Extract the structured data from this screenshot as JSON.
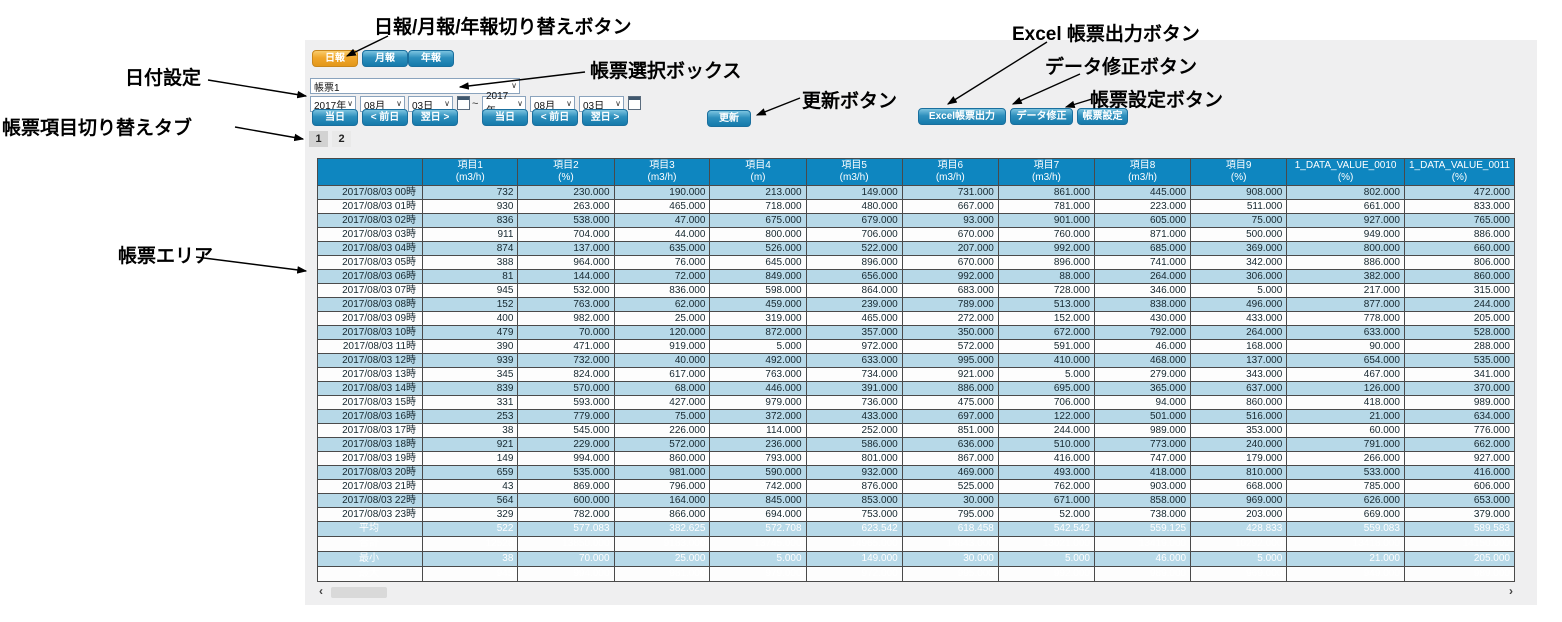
{
  "annotations": {
    "report_type": "日報/月報/年報切り替えボタン",
    "date_setting": "日付設定",
    "report_select": "帳票選択ボックス",
    "update": "更新ボタン",
    "excel_export": "Excel 帳票出力ボタン",
    "data_edit": "データ修正ボタン",
    "report_config": "帳票設定ボタン",
    "item_tabs": "帳票項目切り替えタブ",
    "report_area": "帳票エリア"
  },
  "toolbar": {
    "daily": "日報",
    "monthly": "月報",
    "yearly": "年報",
    "report_select_value": "帳票1",
    "date_from": {
      "year": "2017年",
      "month": "08月",
      "day": "03日"
    },
    "date_to": {
      "year": "2017年",
      "month": "08月",
      "day": "03日"
    },
    "range_separator": "~",
    "today": "当日",
    "prev_day": "< 前日",
    "next_day": "翌日 >",
    "update": "更新",
    "excel_export": "Excel帳票出力",
    "data_edit": "データ修正",
    "report_config": "帳票設定"
  },
  "tabs": [
    {
      "label": "1",
      "active": true
    },
    {
      "label": "2",
      "active": false
    }
  ],
  "scrollbar": {
    "left": "‹",
    "right": "›"
  },
  "colors": {
    "panel_bg": "#efeff0",
    "button_blue": "#2d8fbd",
    "button_orange": "#f0a62b",
    "table_header_blue": "#0e86c0",
    "row_stripe_blue": "#b7d9e8",
    "summary_blue": "#0e86c0"
  },
  "table": {
    "columns": [
      {
        "name": "項目1",
        "unit": "(m3/h)"
      },
      {
        "name": "項目2",
        "unit": "(%)"
      },
      {
        "name": "項目3",
        "unit": "(m3/h)"
      },
      {
        "name": "項目4",
        "unit": "(m)"
      },
      {
        "name": "項目5",
        "unit": "(m3/h)"
      },
      {
        "name": "項目6",
        "unit": "(m3/h)"
      },
      {
        "name": "項目7",
        "unit": "(m3/h)"
      },
      {
        "name": "項目8",
        "unit": "(m3/h)"
      },
      {
        "name": "項目9",
        "unit": "(%)"
      },
      {
        "name": "1_DATA_VALUE_0010",
        "unit": "(%)"
      },
      {
        "name": "1_DATA_VALUE_0011",
        "unit": "(%)"
      }
    ],
    "rows": [
      {
        "label": "2017/08/03 00時",
        "values": [
          "732",
          "230.000",
          "190.000",
          "213.000",
          "149.000",
          "731.000",
          "861.000",
          "445.000",
          "908.000",
          "802.000",
          "472.000"
        ]
      },
      {
        "label": "2017/08/03 01時",
        "values": [
          "930",
          "263.000",
          "465.000",
          "718.000",
          "480.000",
          "667.000",
          "781.000",
          "223.000",
          "511.000",
          "661.000",
          "833.000"
        ]
      },
      {
        "label": "2017/08/03 02時",
        "values": [
          "836",
          "538.000",
          "47.000",
          "675.000",
          "679.000",
          "93.000",
          "901.000",
          "605.000",
          "75.000",
          "927.000",
          "765.000"
        ]
      },
      {
        "label": "2017/08/03 03時",
        "values": [
          "911",
          "704.000",
          "44.000",
          "800.000",
          "706.000",
          "670.000",
          "760.000",
          "871.000",
          "500.000",
          "949.000",
          "886.000"
        ]
      },
      {
        "label": "2017/08/03 04時",
        "values": [
          "874",
          "137.000",
          "635.000",
          "526.000",
          "522.000",
          "207.000",
          "992.000",
          "685.000",
          "369.000",
          "800.000",
          "660.000"
        ]
      },
      {
        "label": "2017/08/03 05時",
        "values": [
          "388",
          "964.000",
          "76.000",
          "645.000",
          "896.000",
          "670.000",
          "896.000",
          "741.000",
          "342.000",
          "886.000",
          "806.000"
        ]
      },
      {
        "label": "2017/08/03 06時",
        "values": [
          "81",
          "144.000",
          "72.000",
          "849.000",
          "656.000",
          "992.000",
          "88.000",
          "264.000",
          "306.000",
          "382.000",
          "860.000"
        ]
      },
      {
        "label": "2017/08/03 07時",
        "values": [
          "945",
          "532.000",
          "836.000",
          "598.000",
          "864.000",
          "683.000",
          "728.000",
          "346.000",
          "5.000",
          "217.000",
          "315.000"
        ]
      },
      {
        "label": "2017/08/03 08時",
        "values": [
          "152",
          "763.000",
          "62.000",
          "459.000",
          "239.000",
          "789.000",
          "513.000",
          "838.000",
          "496.000",
          "877.000",
          "244.000"
        ]
      },
      {
        "label": "2017/08/03 09時",
        "values": [
          "400",
          "982.000",
          "25.000",
          "319.000",
          "465.000",
          "272.000",
          "152.000",
          "430.000",
          "433.000",
          "778.000",
          "205.000"
        ]
      },
      {
        "label": "2017/08/03 10時",
        "values": [
          "479",
          "70.000",
          "120.000",
          "872.000",
          "357.000",
          "350.000",
          "672.000",
          "792.000",
          "264.000",
          "633.000",
          "528.000"
        ]
      },
      {
        "label": "2017/08/03 11時",
        "values": [
          "390",
          "471.000",
          "919.000",
          "5.000",
          "972.000",
          "572.000",
          "591.000",
          "46.000",
          "168.000",
          "90.000",
          "288.000"
        ]
      },
      {
        "label": "2017/08/03 12時",
        "values": [
          "939",
          "732.000",
          "40.000",
          "492.000",
          "633.000",
          "995.000",
          "410.000",
          "468.000",
          "137.000",
          "654.000",
          "535.000"
        ]
      },
      {
        "label": "2017/08/03 13時",
        "values": [
          "345",
          "824.000",
          "617.000",
          "763.000",
          "734.000",
          "921.000",
          "5.000",
          "279.000",
          "343.000",
          "467.000",
          "341.000"
        ]
      },
      {
        "label": "2017/08/03 14時",
        "values": [
          "839",
          "570.000",
          "68.000",
          "446.000",
          "391.000",
          "886.000",
          "695.000",
          "365.000",
          "637.000",
          "126.000",
          "370.000"
        ]
      },
      {
        "label": "2017/08/03 15時",
        "values": [
          "331",
          "593.000",
          "427.000",
          "979.000",
          "736.000",
          "475.000",
          "706.000",
          "94.000",
          "860.000",
          "418.000",
          "989.000"
        ]
      },
      {
        "label": "2017/08/03 16時",
        "values": [
          "253",
          "779.000",
          "75.000",
          "372.000",
          "433.000",
          "697.000",
          "122.000",
          "501.000",
          "516.000",
          "21.000",
          "634.000"
        ]
      },
      {
        "label": "2017/08/03 17時",
        "values": [
          "38",
          "545.000",
          "226.000",
          "114.000",
          "252.000",
          "851.000",
          "244.000",
          "989.000",
          "353.000",
          "60.000",
          "776.000"
        ]
      },
      {
        "label": "2017/08/03 18時",
        "values": [
          "921",
          "229.000",
          "572.000",
          "236.000",
          "586.000",
          "636.000",
          "510.000",
          "773.000",
          "240.000",
          "791.000",
          "662.000"
        ]
      },
      {
        "label": "2017/08/03 19時",
        "values": [
          "149",
          "994.000",
          "860.000",
          "793.000",
          "801.000",
          "867.000",
          "416.000",
          "747.000",
          "179.000",
          "266.000",
          "927.000"
        ]
      },
      {
        "label": "2017/08/03 20時",
        "values": [
          "659",
          "535.000",
          "981.000",
          "590.000",
          "932.000",
          "469.000",
          "493.000",
          "418.000",
          "810.000",
          "533.000",
          "416.000"
        ]
      },
      {
        "label": "2017/08/03 21時",
        "values": [
          "43",
          "869.000",
          "796.000",
          "742.000",
          "876.000",
          "525.000",
          "762.000",
          "903.000",
          "668.000",
          "785.000",
          "606.000"
        ]
      },
      {
        "label": "2017/08/03 22時",
        "values": [
          "564",
          "600.000",
          "164.000",
          "845.000",
          "853.000",
          "30.000",
          "671.000",
          "858.000",
          "969.000",
          "626.000",
          "653.000"
        ]
      },
      {
        "label": "2017/08/03 23時",
        "values": [
          "329",
          "782.000",
          "866.000",
          "694.000",
          "753.000",
          "795.000",
          "52.000",
          "738.000",
          "203.000",
          "669.000",
          "379.000"
        ]
      }
    ],
    "summary": [
      {
        "label": "平均",
        "values": [
          "522",
          "577.083",
          "382.625",
          "572.708",
          "623.542",
          "618.458",
          "542.542",
          "559.125",
          "428.833",
          "559.083",
          "589.583"
        ]
      },
      {
        "label": "合計",
        "values": [
          "12528",
          "13850.000",
          "9183.000",
          "13745.000",
          "14965.000",
          "14843.000",
          "13021.000",
          "13419.000",
          "10292.000",
          "13418.000",
          "14150.000"
        ]
      },
      {
        "label": "最小",
        "values": [
          "38",
          "70.000",
          "25.000",
          "5.000",
          "149.000",
          "30.000",
          "5.000",
          "46.000",
          "5.000",
          "21.000",
          "205.000"
        ]
      },
      {
        "label": "最大",
        "values": [
          "945",
          "994.000",
          "981.000",
          "979.000",
          "972.000",
          "995.000",
          "992.000",
          "989.000",
          "969.000",
          "949.000",
          "989.000"
        ]
      }
    ]
  }
}
